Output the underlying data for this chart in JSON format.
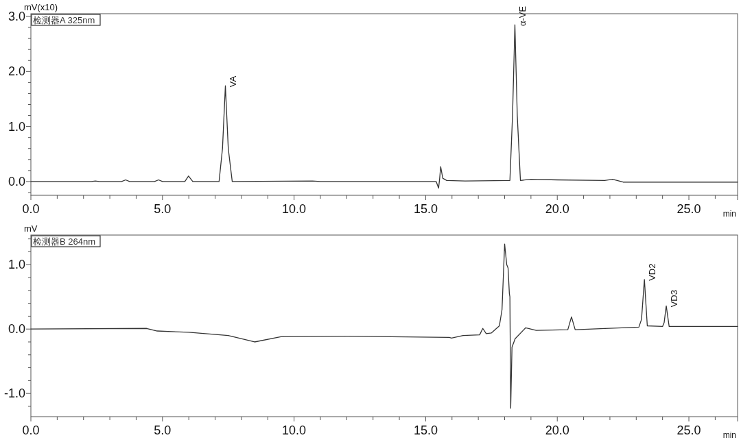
{
  "chart_data": [
    {
      "type": "line",
      "xlabel": "min",
      "ylabel": "mV(x10)",
      "legend": "top left",
      "xlim": [
        0,
        26.85
      ],
      "ylim": [
        -0.25,
        3.05
      ],
      "xticks": [
        {
          "value": 0,
          "label": "0.0"
        },
        {
          "value": 1,
          "label": null
        },
        {
          "value": 2,
          "label": null
        },
        {
          "value": 3,
          "label": null
        },
        {
          "value": 4,
          "label": null
        },
        {
          "value": 5,
          "label": "5.0"
        },
        {
          "value": 6,
          "label": null
        },
        {
          "value": 7,
          "label": null
        },
        {
          "value": 8,
          "label": null
        },
        {
          "value": 9,
          "label": null
        },
        {
          "value": 10,
          "label": "10.0"
        },
        {
          "value": 11,
          "label": null
        },
        {
          "value": 12,
          "label": null
        },
        {
          "value": 13,
          "label": null
        },
        {
          "value": 14,
          "label": null
        },
        {
          "value": 15,
          "label": "15.0"
        },
        {
          "value": 16,
          "label": null
        },
        {
          "value": 17,
          "label": null
        },
        {
          "value": 18,
          "label": null
        },
        {
          "value": 19,
          "label": null
        },
        {
          "value": 20,
          "label": "20.0"
        },
        {
          "value": 21,
          "label": null
        },
        {
          "value": 22,
          "label": null
        },
        {
          "value": 23,
          "label": null
        },
        {
          "value": 24,
          "label": null
        },
        {
          "value": 25,
          "label": "25.0"
        },
        {
          "value": 26,
          "label": null
        }
      ],
      "yticks": [
        {
          "value": -0.2,
          "label": null
        },
        {
          "value": 0,
          "label": "0.0"
        },
        {
          "value": 0.2,
          "label": null
        },
        {
          "value": 0.4,
          "label": null
        },
        {
          "value": 0.6,
          "label": null
        },
        {
          "value": 0.8,
          "label": null
        },
        {
          "value": 1,
          "label": "1.0"
        },
        {
          "value": 1.2,
          "label": null
        },
        {
          "value": 1.4,
          "label": null
        },
        {
          "value": 1.6,
          "label": null
        },
        {
          "value": 1.8,
          "label": null
        },
        {
          "value": 2,
          "label": "2.0"
        },
        {
          "value": 2.2,
          "label": null
        },
        {
          "value": 2.4,
          "label": null
        },
        {
          "value": 2.6,
          "label": null
        },
        {
          "value": 2.8,
          "label": null
        },
        {
          "value": 3,
          "label": "3.0"
        }
      ],
      "series": [
        {
          "name": "检测器A 325nm",
          "color": "#333333",
          "x": [
            0,
            2.3,
            2.45,
            2.6,
            3.45,
            3.6,
            3.75,
            4.7,
            4.85,
            5.0,
            5.85,
            5.99,
            6.15,
            7.15,
            7.28,
            7.39,
            7.5,
            7.65,
            10.7,
            11,
            15.4,
            15.49,
            15.53,
            15.57,
            15.65,
            15.8,
            16.5,
            18.2,
            18.3,
            18.39,
            18.48,
            18.6,
            19.0,
            20.0,
            21.8,
            22.1,
            22.5,
            26.85
          ],
          "values": [
            0,
            0,
            0.01,
            0,
            0,
            0.03,
            0,
            0,
            0.03,
            0,
            0,
            0.1,
            0,
            0,
            0.6,
            1.74,
            0.6,
            0,
            0.01,
            0,
            0,
            -0.12,
            0.05,
            0.27,
            0.06,
            0.02,
            0.01,
            0.02,
            1.2,
            2.85,
            1.2,
            0.02,
            0.04,
            0.03,
            0.02,
            0.04,
            -0.01,
            -0.01
          ]
        }
      ],
      "annotations": [
        {
          "text": "VA",
          "x": 7.39,
          "y": 1.74
        },
        {
          "text": "α-VE",
          "x": 18.39,
          "y": 2.85
        }
      ]
    },
    {
      "type": "line",
      "xlabel": "min",
      "ylabel": "mV",
      "legend": "top left",
      "xlim": [
        0,
        26.85
      ],
      "ylim": [
        -1.36,
        1.46
      ],
      "xticks": [
        {
          "value": 0,
          "label": "0.0"
        },
        {
          "value": 1,
          "label": null
        },
        {
          "value": 2,
          "label": null
        },
        {
          "value": 3,
          "label": null
        },
        {
          "value": 4,
          "label": null
        },
        {
          "value": 5,
          "label": "5.0"
        },
        {
          "value": 6,
          "label": null
        },
        {
          "value": 7,
          "label": null
        },
        {
          "value": 8,
          "label": null
        },
        {
          "value": 9,
          "label": null
        },
        {
          "value": 10,
          "label": "10.0"
        },
        {
          "value": 11,
          "label": null
        },
        {
          "value": 12,
          "label": null
        },
        {
          "value": 13,
          "label": null
        },
        {
          "value": 14,
          "label": null
        },
        {
          "value": 15,
          "label": "15.0"
        },
        {
          "value": 16,
          "label": null
        },
        {
          "value": 17,
          "label": null
        },
        {
          "value": 18,
          "label": null
        },
        {
          "value": 19,
          "label": null
        },
        {
          "value": 20,
          "label": "20.0"
        },
        {
          "value": 21,
          "label": null
        },
        {
          "value": 22,
          "label": null
        },
        {
          "value": 23,
          "label": null
        },
        {
          "value": 24,
          "label": null
        },
        {
          "value": 25,
          "label": "25.0"
        },
        {
          "value": 26,
          "label": null
        }
      ],
      "yticks": [
        {
          "value": -1.2,
          "label": null
        },
        {
          "value": -1,
          "label": "-1.0"
        },
        {
          "value": -0.8,
          "label": null
        },
        {
          "value": -0.6,
          "label": null
        },
        {
          "value": -0.4,
          "label": null
        },
        {
          "value": -0.2,
          "label": null
        },
        {
          "value": 0,
          "label": "0.0"
        },
        {
          "value": 0.2,
          "label": null
        },
        {
          "value": 0.4,
          "label": null
        },
        {
          "value": 0.6,
          "label": null
        },
        {
          "value": 0.8,
          "label": null
        },
        {
          "value": 1,
          "label": "1.0"
        },
        {
          "value": 1.2,
          "label": null
        },
        {
          "value": 1.4,
          "label": null
        }
      ],
      "series": [
        {
          "name": "检测器B 264nm",
          "color": "#333333",
          "x": [
            0,
            4.4,
            4.8,
            6.0,
            7.5,
            8.5,
            9.5,
            12,
            15.9,
            15.98,
            16.42,
            17.05,
            17.17,
            17.3,
            17.5,
            17.8,
            17.9,
            18.0,
            18.08,
            18.13,
            18.18,
            18.2,
            18.23,
            18.28,
            18.4,
            18.8,
            19.2,
            20.4,
            20.54,
            20.68,
            23.1,
            23.2,
            23.31,
            23.42,
            24.0,
            24.06,
            24.14,
            24.25,
            26.85
          ],
          "values": [
            0,
            0.01,
            -0.03,
            -0.05,
            -0.1,
            -0.2,
            -0.12,
            -0.11,
            -0.13,
            -0.14,
            -0.1,
            -0.09,
            0.01,
            -0.07,
            -0.06,
            0.05,
            0.3,
            1.32,
            1.0,
            0.95,
            0.55,
            0.5,
            -1.23,
            -0.28,
            -0.15,
            0.02,
            -0.02,
            -0.01,
            0.19,
            -0.01,
            0.03,
            0.15,
            0.77,
            0.05,
            0.04,
            0.1,
            0.36,
            0.04,
            0.04
          ]
        }
      ],
      "annotations": [
        {
          "text": "VD2",
          "x": 23.31,
          "y": 0.77
        },
        {
          "text": "VD3",
          "x": 24.14,
          "y": 0.36
        }
      ]
    }
  ]
}
